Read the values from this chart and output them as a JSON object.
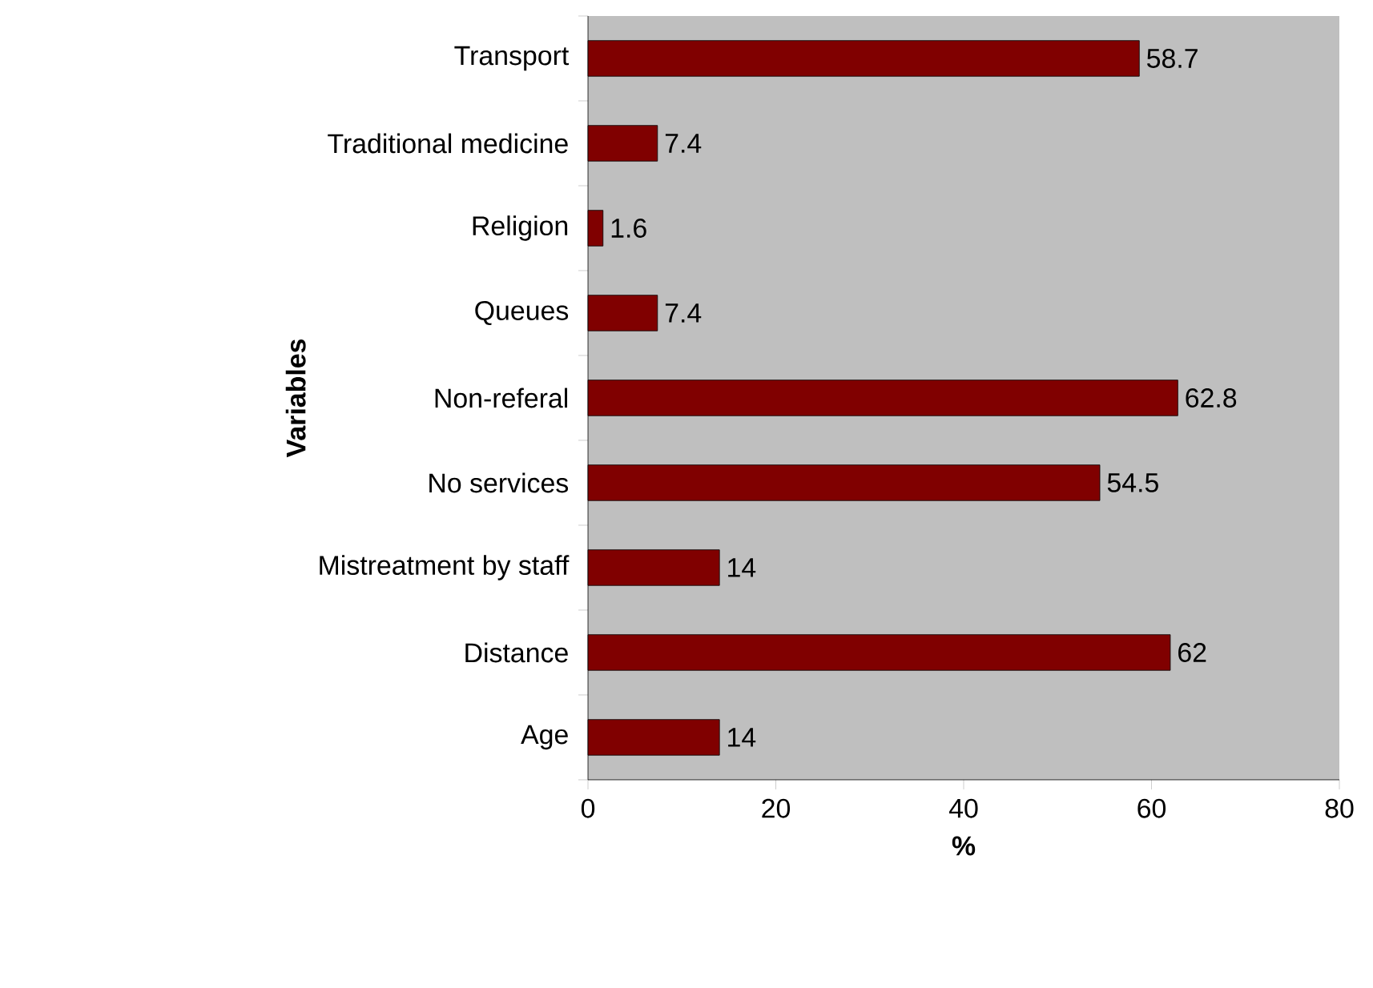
{
  "chart_data": {
    "type": "bar",
    "orientation": "horizontal",
    "xlabel": "%",
    "ylabel": "Variables",
    "categories": [
      "Transport",
      "Traditional medicine",
      "Religion",
      "Queues",
      "Non-referal",
      "No services",
      "Mistreatment by staff",
      "Distance",
      "Age"
    ],
    "values": [
      58.7,
      7.4,
      1.6,
      7.4,
      62.8,
      54.5,
      14,
      62,
      14
    ],
    "color": "#800000",
    "xlim": [
      0,
      80
    ],
    "xticks": [
      0,
      20,
      40,
      60,
      80
    ],
    "data_labels": true
  }
}
